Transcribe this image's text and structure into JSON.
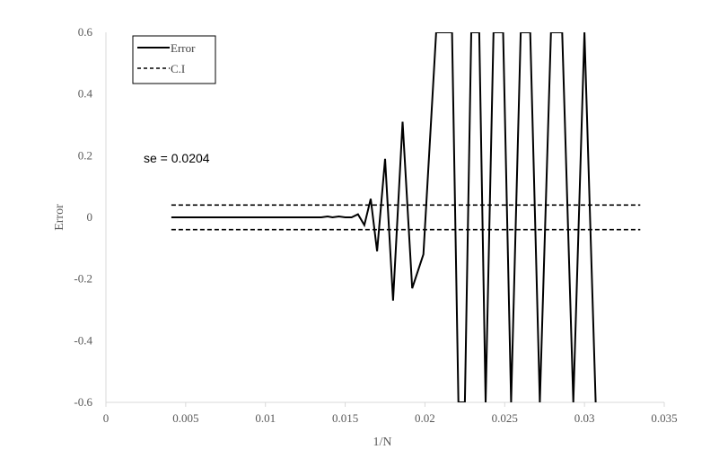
{
  "chart_data": {
    "type": "line",
    "title": "",
    "xlabel": "1/N",
    "ylabel": "Error",
    "xlim": [
      0,
      0.035
    ],
    "ylim": [
      -0.6,
      0.6
    ],
    "x_ticks": [
      "0",
      "0.005",
      "0.01",
      "0.015",
      "0.02",
      "0.025",
      "0.03",
      "0.035"
    ],
    "y_ticks": [
      "-0.6",
      "-0.4",
      "-0.2",
      "0",
      "0.2",
      "0.4",
      "0.6"
    ],
    "grid": false,
    "legend_position": "top-left",
    "annotation": "se =  0.0204",
    "series": [
      {
        "name": "Error",
        "style": "solid",
        "color": "#000000",
        "x": [
          0.0041,
          0.005,
          0.006,
          0.007,
          0.008,
          0.009,
          0.01,
          0.011,
          0.012,
          0.013,
          0.0135,
          0.0139,
          0.0142,
          0.0146,
          0.015,
          0.0154,
          0.0158,
          0.0162,
          0.0166,
          0.017,
          0.0175,
          0.018,
          0.0186,
          0.0192,
          0.0199,
          0.0207,
          0.0214,
          0.0217,
          0.0221,
          0.0225,
          0.0229,
          0.0234,
          0.0238,
          0.0243,
          0.0249,
          0.0254,
          0.026,
          0.0266,
          0.0272,
          0.0279,
          0.0286,
          0.0293,
          0.03,
          0.0307
        ],
        "y": [
          0,
          0,
          0,
          0,
          0,
          0,
          0,
          0,
          0,
          0,
          0,
          0.003,
          0,
          0.003,
          0,
          0,
          0.01,
          -0.025,
          0.06,
          -0.11,
          0.19,
          -0.27,
          0.31,
          -0.23,
          -0.12,
          0.6,
          0.6,
          0.6,
          -0.6,
          -0.6,
          0.6,
          0.6,
          -0.6,
          0.6,
          0.6,
          -0.6,
          0.6,
          0.6,
          -0.6,
          0.6,
          0.6,
          -0.6,
          0.6,
          -0.6
        ]
      },
      {
        "name": "C.I",
        "style": "dashed",
        "color": "#000000",
        "x": [
          0.0041,
          0.0335
        ],
        "y": [
          0.04,
          0.04
        ]
      },
      {
        "name": "",
        "style": "dashed",
        "color": "#000000",
        "x": [
          0.0041,
          0.0335
        ],
        "y": [
          -0.04,
          -0.04
        ]
      }
    ],
    "legend": [
      "Error",
      "C.I"
    ]
  }
}
